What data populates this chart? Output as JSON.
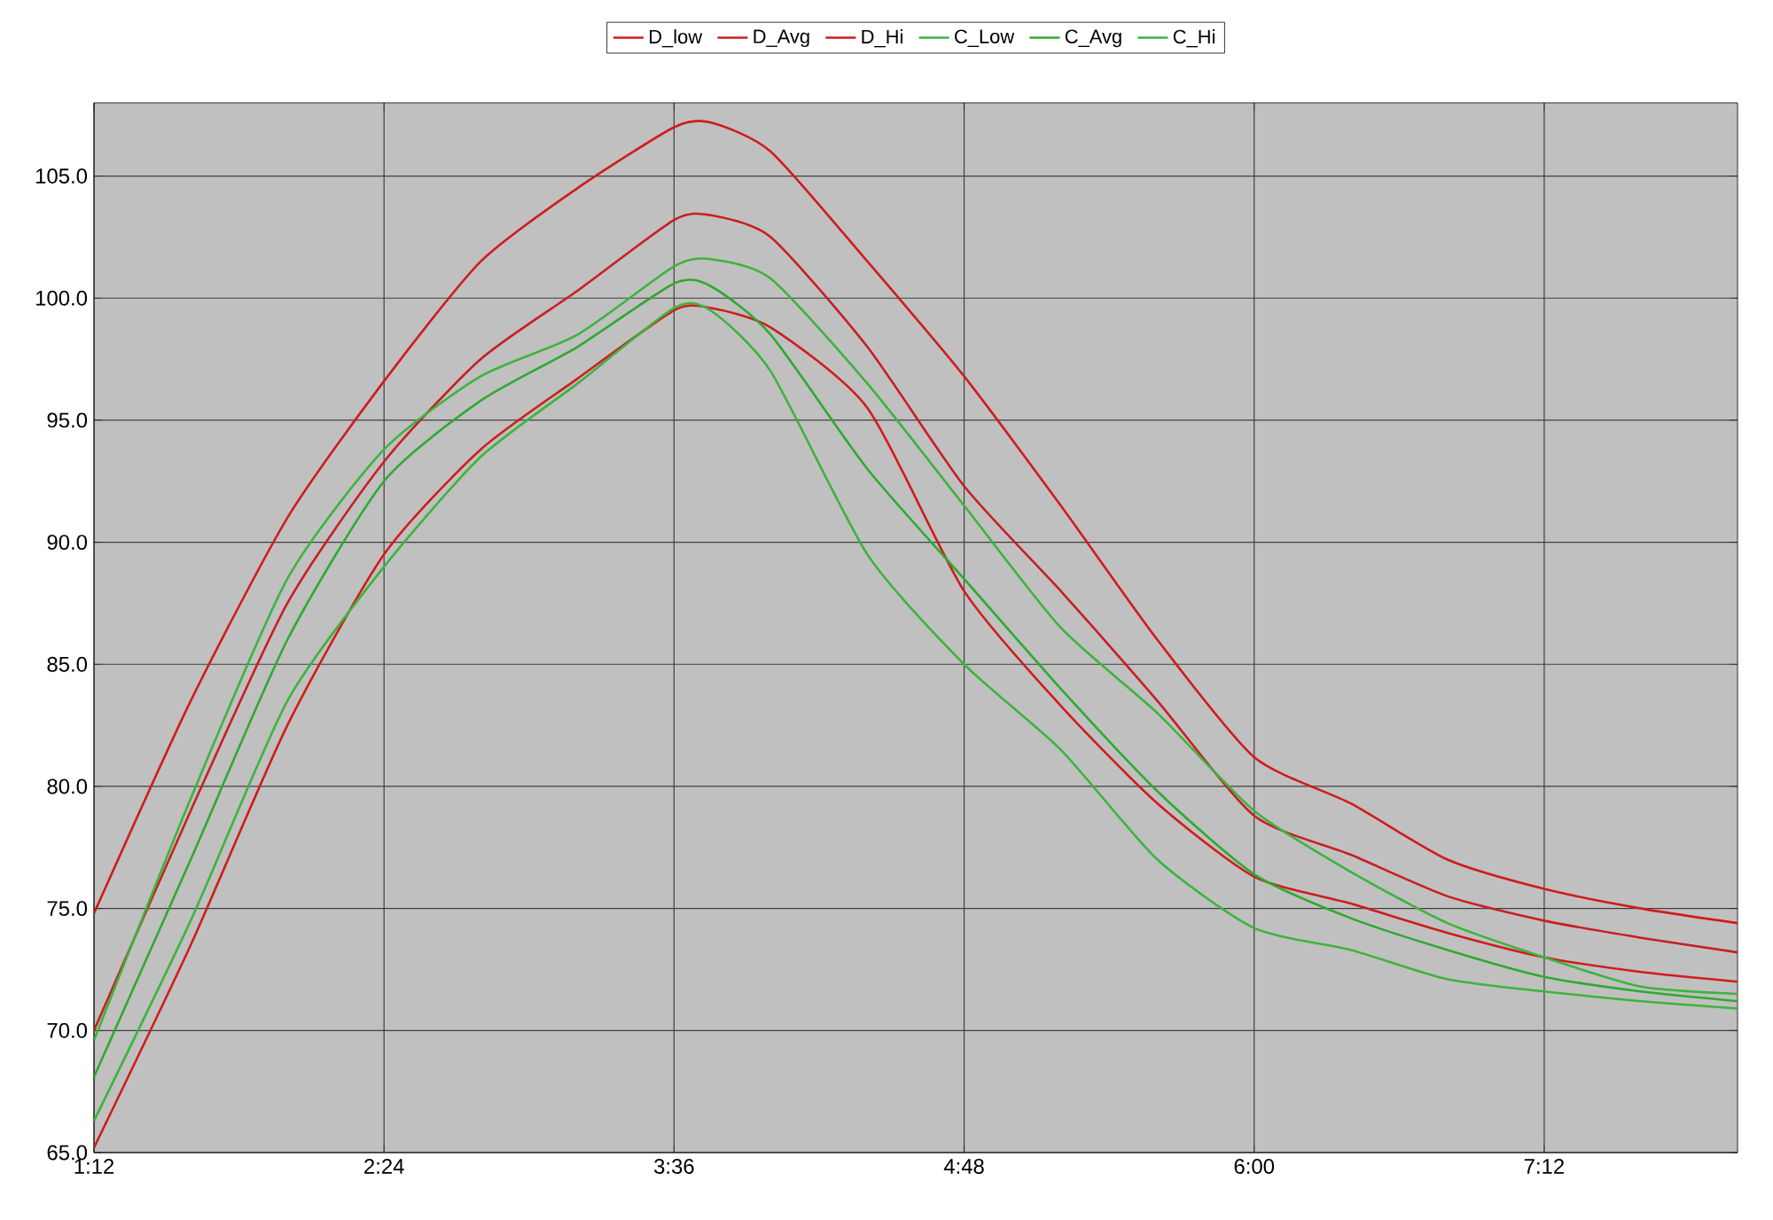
{
  "chart_data": {
    "type": "line",
    "x": [
      1.2,
      1.6,
      2.0,
      2.4,
      2.8,
      3.2,
      3.6,
      3.75,
      4.0,
      4.4,
      4.8,
      5.2,
      5.6,
      6.0,
      6.4,
      6.8,
      7.2,
      7.6,
      8.0
    ],
    "series": [
      {
        "name": "D_low",
        "color": "#d01c1c",
        "values": [
          65.2,
          73.5,
          82.5,
          89.5,
          93.8,
          96.7,
          99.5,
          99.6,
          98.8,
          95.5,
          88.0,
          83.3,
          79.3,
          76.3,
          75.2,
          74.0,
          73.0,
          72.4,
          72.0
        ]
      },
      {
        "name": "D_Avg",
        "color": "#c81e24",
        "values": [
          70.0,
          79.0,
          87.5,
          93.3,
          97.5,
          100.3,
          103.2,
          103.4,
          102.5,
          98.0,
          92.3,
          88.0,
          83.5,
          78.8,
          77.2,
          75.5,
          74.5,
          73.8,
          73.2
        ]
      },
      {
        "name": "D_Hi",
        "color": "#d01c1c",
        "values": [
          74.8,
          83.5,
          91.0,
          96.6,
          101.5,
          104.5,
          107.0,
          107.2,
          106.0,
          101.5,
          96.8,
          91.5,
          86.0,
          81.2,
          79.3,
          77.0,
          75.8,
          75.0,
          74.4
        ]
      },
      {
        "name": "C_Low",
        "color": "#3cb43c",
        "values": [
          66.3,
          74.5,
          83.5,
          89.0,
          93.5,
          96.5,
          99.6,
          99.5,
          97.0,
          89.5,
          85.0,
          81.5,
          77.0,
          74.2,
          73.3,
          72.1,
          71.6,
          71.2,
          70.9
        ]
      },
      {
        "name": "C_Avg",
        "color": "#2eaa2e",
        "values": [
          68.1,
          77.0,
          86.0,
          92.5,
          95.8,
          98.0,
          100.6,
          100.5,
          98.5,
          93.0,
          88.5,
          84.0,
          79.8,
          76.4,
          74.6,
          73.3,
          72.2,
          71.6,
          71.2
        ]
      },
      {
        "name": "C_Hi",
        "color": "#3cb43c",
        "values": [
          69.6,
          79.5,
          88.5,
          93.8,
          96.8,
          98.5,
          101.3,
          101.6,
          100.8,
          96.5,
          91.5,
          86.5,
          83.0,
          79.0,
          76.5,
          74.4,
          73.0,
          71.8,
          71.5
        ]
      }
    ],
    "xlim": [
      1.2,
      8.0
    ],
    "ylim": [
      65,
      108
    ],
    "xticks": [
      {
        "value": 1.2,
        "label": "1:12"
      },
      {
        "value": 2.4,
        "label": "2:24"
      },
      {
        "value": 3.6,
        "label": "3:36"
      },
      {
        "value": 4.8,
        "label": "4:48"
      },
      {
        "value": 6.0,
        "label": "6:00"
      },
      {
        "value": 7.2,
        "label": "7:12"
      }
    ],
    "yticks": [
      {
        "value": 65,
        "label": "65.0"
      },
      {
        "value": 70,
        "label": "70.0"
      },
      {
        "value": 75,
        "label": "75.0"
      },
      {
        "value": 80,
        "label": "80.0"
      },
      {
        "value": 85,
        "label": "85.0"
      },
      {
        "value": 90,
        "label": "90.0"
      },
      {
        "value": 95,
        "label": "95.0"
      },
      {
        "value": 100,
        "label": "100.0"
      },
      {
        "value": 105,
        "label": "105.0"
      }
    ],
    "grid": true,
    "legend": "top",
    "marker": "none",
    "line_style": "solid"
  }
}
